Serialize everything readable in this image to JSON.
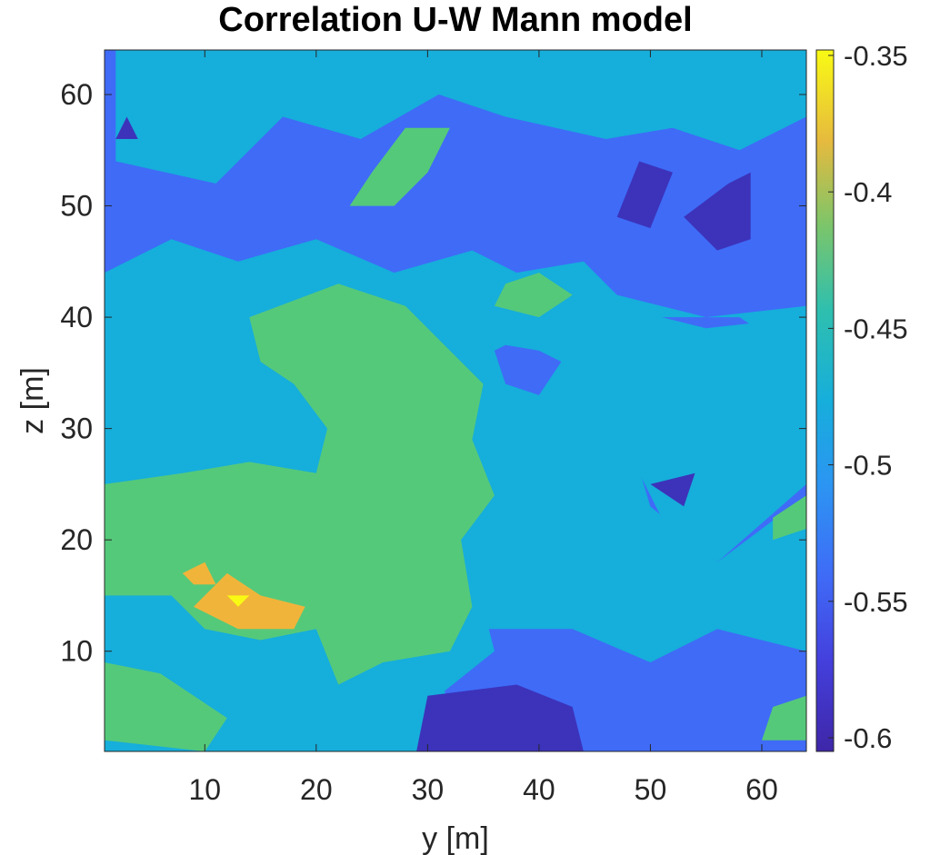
{
  "chart_data": {
    "type": "contour",
    "title": "Correlation U-W Mann model",
    "xlabel": "y [m]",
    "ylabel": "z [m]",
    "xlim": [
      1,
      64
    ],
    "ylim": [
      1,
      64
    ],
    "xticks": [
      10,
      20,
      30,
      40,
      50,
      60
    ],
    "yticks": [
      10,
      20,
      30,
      40,
      50,
      60
    ],
    "colorbar": {
      "range": [
        -0.605,
        -0.348
      ],
      "ticks": [
        -0.35,
        -0.4,
        -0.45,
        -0.5,
        -0.55,
        -0.6
      ],
      "tick_labels": [
        "-0.35",
        "-0.4",
        "-0.45",
        "-0.5",
        "-0.55",
        "-0.6"
      ],
      "colormap": "parula",
      "placement": "right"
    },
    "levels": [
      {
        "min": -0.625,
        "max": -0.575,
        "color": "#3c33ba"
      },
      {
        "min": -0.575,
        "max": -0.525,
        "color": "#3f6bf7"
      },
      {
        "min": -0.525,
        "max": -0.475,
        "color": "#16aedb"
      },
      {
        "min": -0.475,
        "max": -0.425,
        "color": "#55c97a"
      },
      {
        "min": -0.425,
        "max": -0.375,
        "color": "#f1b43a"
      },
      {
        "min": -0.375,
        "max": -0.325,
        "color": "#f9fa14"
      }
    ],
    "regions": [
      {
        "level": 1,
        "points": [
          [
            1,
            44
          ],
          [
            1,
            64
          ],
          [
            64,
            64
          ],
          [
            64,
            41
          ],
          [
            55,
            40
          ],
          [
            47,
            42
          ],
          [
            44,
            45
          ],
          [
            38,
            44
          ],
          [
            34,
            46
          ],
          [
            27,
            44
          ],
          [
            20,
            47
          ],
          [
            13,
            45
          ],
          [
            7,
            47
          ],
          [
            1,
            44
          ]
        ]
      },
      {
        "level": 1,
        "points": [
          [
            33,
            2
          ],
          [
            31,
            8
          ],
          [
            35,
            12
          ],
          [
            43,
            12
          ],
          [
            50,
            9
          ],
          [
            56,
            12
          ],
          [
            64,
            10
          ],
          [
            64,
            1
          ],
          [
            36,
            1
          ],
          [
            33,
            2
          ]
        ]
      },
      {
        "level": 1,
        "points": [
          [
            47,
            40
          ],
          [
            47,
            33
          ],
          [
            50,
            23
          ],
          [
            56,
            18
          ],
          [
            64,
            24
          ],
          [
            64,
            36
          ],
          [
            58,
            40
          ],
          [
            47,
            40
          ]
        ]
      },
      {
        "level": 1,
        "points": [
          [
            1,
            34
          ],
          [
            6,
            32
          ],
          [
            11,
            34
          ],
          [
            8,
            38
          ],
          [
            1,
            38
          ],
          [
            1,
            34
          ]
        ]
      },
      {
        "level": 1,
        "points": [
          [
            37,
            34
          ],
          [
            40,
            33
          ],
          [
            42,
            36
          ],
          [
            38,
            38
          ],
          [
            36,
            37
          ],
          [
            37,
            34
          ]
        ]
      },
      {
        "level": 2,
        "points": [
          [
            1,
            24
          ],
          [
            1,
            43
          ],
          [
            7,
            44
          ],
          [
            13,
            44
          ],
          [
            22,
            45
          ],
          [
            27,
            43
          ],
          [
            33,
            45
          ],
          [
            37,
            43
          ],
          [
            44,
            44
          ],
          [
            47,
            41
          ],
          [
            55,
            39
          ],
          [
            64,
            40
          ],
          [
            64,
            25
          ],
          [
            56,
            18
          ],
          [
            51,
            22
          ],
          [
            46,
            32
          ],
          [
            46,
            39
          ],
          [
            42,
            41
          ],
          [
            40,
            37
          ],
          [
            34,
            38
          ],
          [
            32,
            35
          ],
          [
            34,
            28
          ],
          [
            33,
            22
          ],
          [
            36,
            10
          ],
          [
            31,
            6
          ],
          [
            34,
            1
          ],
          [
            20,
            1
          ],
          [
            10,
            5
          ],
          [
            7,
            12
          ],
          [
            1,
            14
          ],
          [
            1,
            24
          ]
        ]
      },
      {
        "level": 2,
        "points": [
          [
            2,
            54
          ],
          [
            11,
            52
          ],
          [
            17,
            58
          ],
          [
            24,
            56
          ],
          [
            31,
            60
          ],
          [
            37,
            58
          ],
          [
            46,
            56
          ],
          [
            52,
            57
          ],
          [
            58,
            55
          ],
          [
            64,
            58
          ],
          [
            64,
            64
          ],
          [
            2,
            64
          ],
          [
            2,
            54
          ]
        ]
      },
      {
        "level": 2,
        "points": [
          [
            1,
            2
          ],
          [
            7,
            1
          ],
          [
            20,
            1
          ],
          [
            12,
            5
          ],
          [
            6,
            10
          ],
          [
            1,
            9
          ],
          [
            1,
            2
          ]
        ]
      },
      {
        "level": 3,
        "points": [
          [
            1,
            15
          ],
          [
            1,
            25
          ],
          [
            8,
            26
          ],
          [
            14,
            27
          ],
          [
            20,
            26
          ],
          [
            21,
            30
          ],
          [
            18,
            34
          ],
          [
            15,
            36
          ],
          [
            14,
            40
          ],
          [
            22,
            43
          ],
          [
            28,
            41
          ],
          [
            32,
            37
          ],
          [
            35,
            34
          ],
          [
            34,
            29
          ],
          [
            36,
            24
          ],
          [
            33,
            20
          ],
          [
            34,
            14
          ],
          [
            32,
            10
          ],
          [
            26,
            9
          ],
          [
            22,
            7
          ],
          [
            20,
            12
          ],
          [
            15,
            11
          ],
          [
            10,
            12
          ],
          [
            7,
            15
          ],
          [
            1,
            15
          ]
        ]
      },
      {
        "level": 3,
        "points": [
          [
            1,
            2
          ],
          [
            1,
            9
          ],
          [
            6,
            8
          ],
          [
            12,
            4
          ],
          [
            10,
            1
          ],
          [
            1,
            2
          ]
        ]
      },
      {
        "level": 3,
        "points": [
          [
            23,
            50
          ],
          [
            27,
            50
          ],
          [
            30,
            53
          ],
          [
            32,
            57
          ],
          [
            28,
            57
          ],
          [
            25,
            53
          ],
          [
            23,
            50
          ]
        ]
      },
      {
        "level": 3,
        "points": [
          [
            36,
            41
          ],
          [
            40,
            40
          ],
          [
            43,
            42
          ],
          [
            40,
            44
          ],
          [
            37,
            43
          ],
          [
            36,
            41
          ]
        ]
      },
      {
        "level": 3,
        "points": [
          [
            60,
            2
          ],
          [
            64,
            2
          ],
          [
            64,
            6
          ],
          [
            61,
            5
          ],
          [
            60,
            2
          ]
        ]
      },
      {
        "level": 3,
        "points": [
          [
            61,
            20
          ],
          [
            64,
            21
          ],
          [
            64,
            24
          ],
          [
            61,
            22
          ],
          [
            61,
            20
          ]
        ]
      },
      {
        "level": 0,
        "points": [
          [
            29,
            1
          ],
          [
            44,
            1
          ],
          [
            43,
            5
          ],
          [
            38,
            7
          ],
          [
            30,
            6
          ],
          [
            29,
            1
          ]
        ]
      },
      {
        "level": 0,
        "points": [
          [
            47,
            49
          ],
          [
            49,
            54
          ],
          [
            52,
            53
          ],
          [
            50,
            48
          ],
          [
            47,
            49
          ]
        ]
      },
      {
        "level": 0,
        "points": [
          [
            53,
            49
          ],
          [
            57,
            52
          ],
          [
            59,
            53
          ],
          [
            59,
            47
          ],
          [
            56,
            46
          ],
          [
            53,
            49
          ]
        ]
      },
      {
        "level": 0,
        "points": [
          [
            50,
            25
          ],
          [
            53,
            23
          ],
          [
            54,
            26
          ],
          [
            50,
            25
          ]
        ]
      },
      {
        "level": 0,
        "points": [
          [
            2,
            56
          ],
          [
            3,
            58
          ],
          [
            4,
            56
          ],
          [
            2,
            56
          ]
        ]
      },
      {
        "level": 4,
        "points": [
          [
            9,
            14
          ],
          [
            12,
            17
          ],
          [
            15,
            15
          ],
          [
            19,
            14
          ],
          [
            18,
            12
          ],
          [
            13,
            12
          ],
          [
            9,
            14
          ]
        ]
      },
      {
        "level": 4,
        "points": [
          [
            8,
            17
          ],
          [
            10,
            18
          ],
          [
            11,
            16
          ],
          [
            9,
            16
          ],
          [
            8,
            17
          ]
        ]
      },
      {
        "level": 5,
        "points": [
          [
            12,
            15
          ],
          [
            14,
            15
          ],
          [
            13,
            14
          ],
          [
            12,
            15
          ]
        ]
      }
    ]
  }
}
